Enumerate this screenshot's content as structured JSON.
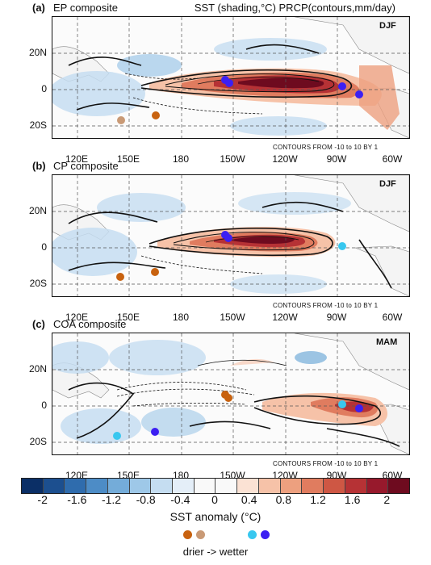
{
  "header": {
    "title_right": "SST (shading,°C) PRCP(contours,mm/day)"
  },
  "panels": [
    {
      "tag": "(a)",
      "name": "EP composite",
      "season": "DJF"
    },
    {
      "tag": "(b)",
      "name": "CP composite",
      "season": "DJF"
    },
    {
      "tag": "(c)",
      "name": "COA composite",
      "season": "MAM"
    }
  ],
  "contour_note": "CONTOURS FROM -10 to 10 BY 1",
  "axes": {
    "y_ticks": [
      "20N",
      "0",
      "20S"
    ],
    "x_ticks": [
      "120E",
      "150E",
      "180",
      "150W",
      "120W",
      "90W",
      "60W"
    ]
  },
  "colorbar": {
    "tick_labels": [
      "-2",
      "-1.6",
      "-1.2",
      "-0.8",
      "-0.4",
      "0",
      "0.4",
      "0.8",
      "1.2",
      "1.6",
      "2"
    ],
    "title": "SST anomaly (°C)",
    "colors": [
      "#0b2f66",
      "#1c4f8f",
      "#2f6cad",
      "#4d8cc6",
      "#74acd9",
      "#9ec8e8",
      "#c5ddf1",
      "#e4eef8",
      "#f9f9f9",
      "#f9f9f9",
      "#fbe2d4",
      "#f6c2a8",
      "#eda07f",
      "#e07c5f",
      "#ce5744",
      "#b63235",
      "#97192c",
      "#6e0b1f"
    ]
  },
  "legend": {
    "text": "drier -> wetter",
    "dot_colors": [
      "#c8620f",
      "#c99a76",
      "#38c7ef",
      "#3c1ff2"
    ]
  }
}
